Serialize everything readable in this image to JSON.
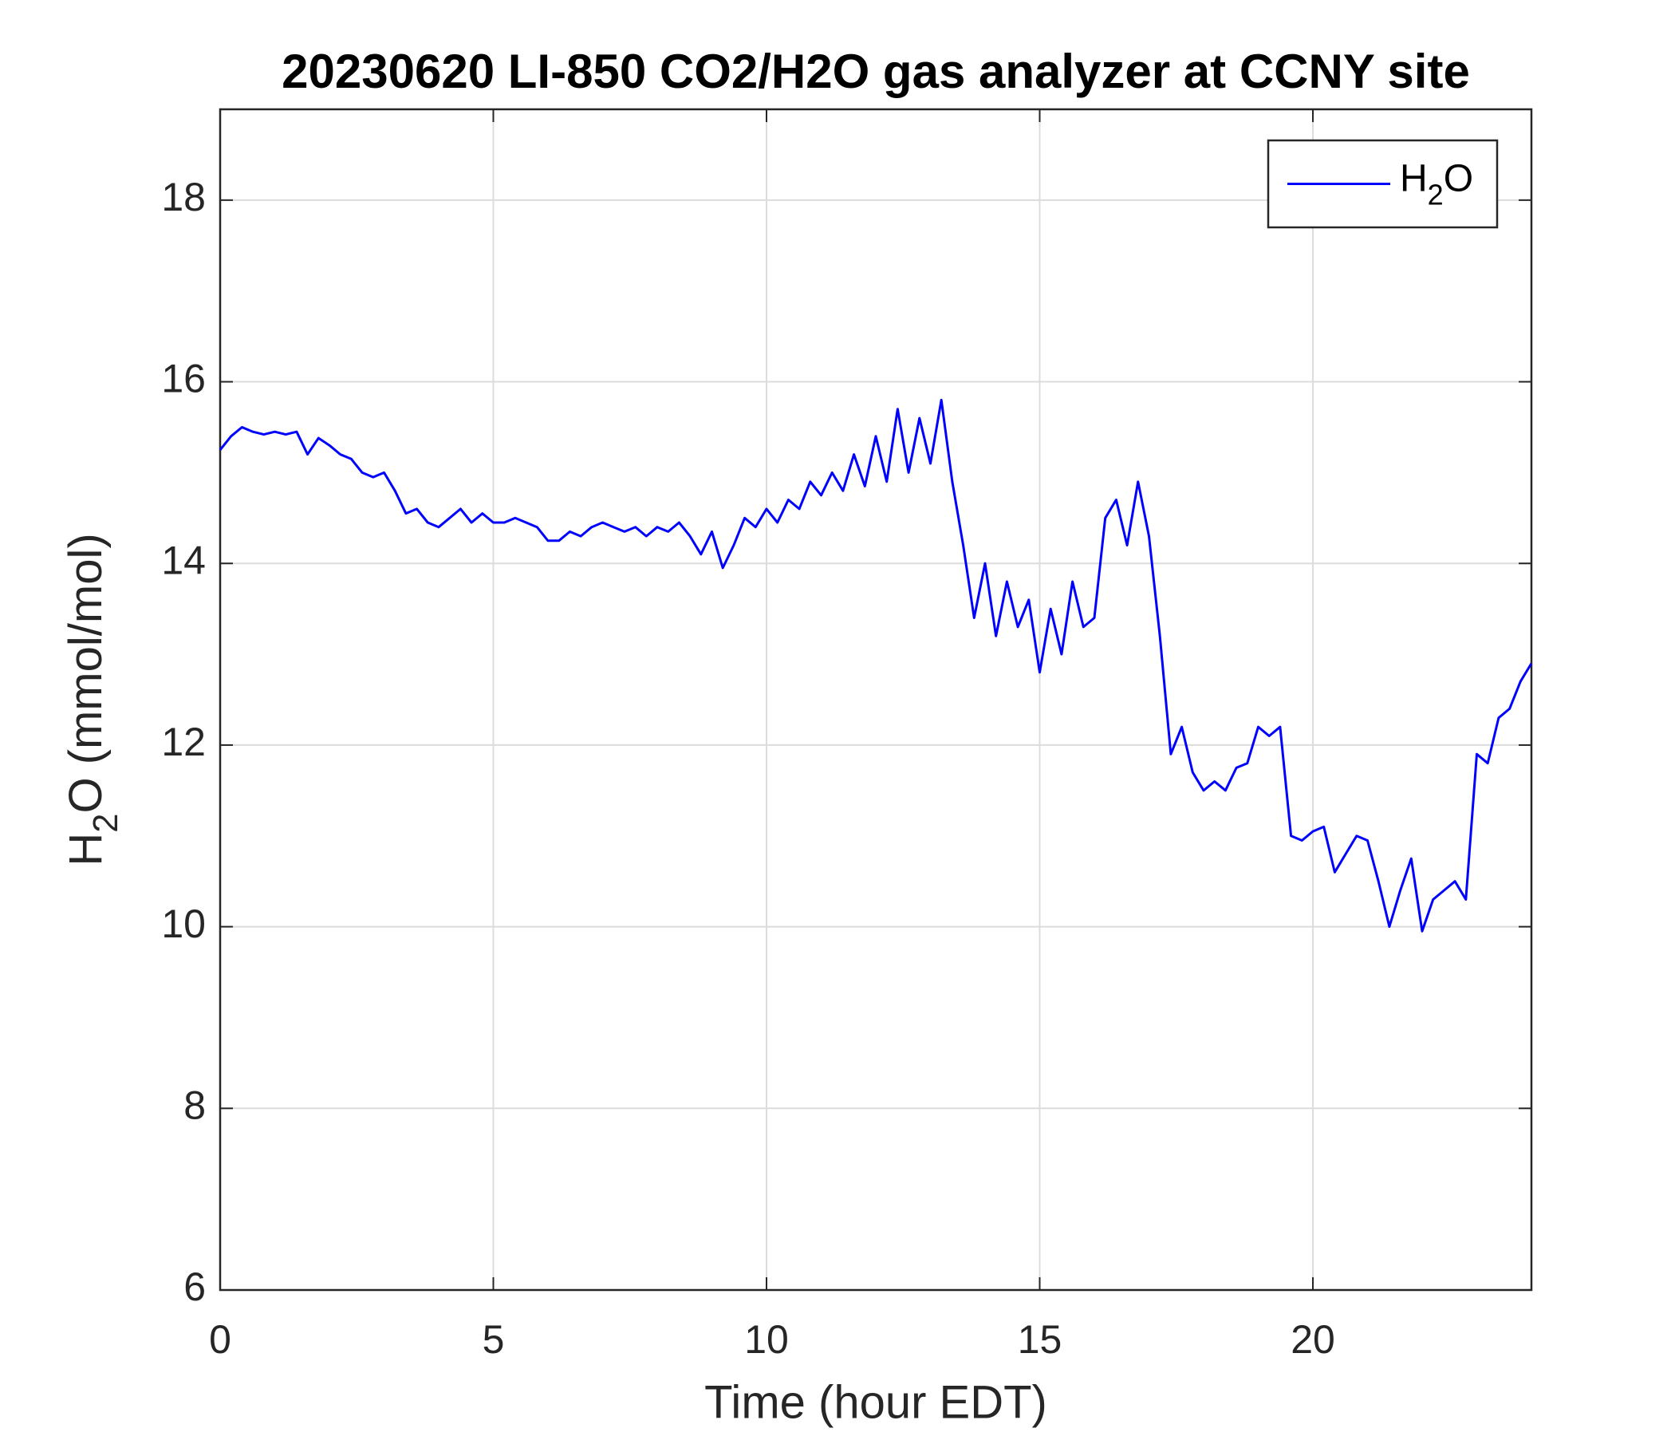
{
  "chart_data": {
    "type": "line",
    "title": "20230620 LI-850 CO2/H2O gas analyzer at CCNY site",
    "x_label": "Time (hour EDT)",
    "y_label": "H2O (mmol/mol)",
    "xlim": [
      0,
      24
    ],
    "xticks": [
      0,
      5,
      10,
      15,
      20
    ],
    "ylim": [
      6,
      19
    ],
    "yticks": [
      6,
      8,
      10,
      12,
      14,
      16,
      18
    ],
    "grid": true,
    "legend": "upper right",
    "x": [
      0,
      0.2,
      0.4,
      0.6,
      0.8,
      1,
      1.2,
      1.4,
      1.6,
      1.8,
      2,
      2.2,
      2.4,
      2.6,
      2.8,
      3,
      3.2,
      3.4,
      3.6,
      3.8,
      4,
      4.2,
      4.4,
      4.6,
      4.8,
      5,
      5.2,
      5.4,
      5.6,
      5.8,
      6,
      6.2,
      6.4,
      6.6,
      6.8,
      7,
      7.2,
      7.4,
      7.6,
      7.8,
      8,
      8.2,
      8.4,
      8.6,
      8.8,
      9,
      9.2,
      9.4,
      9.6,
      9.8,
      10,
      10.2,
      10.4,
      10.6,
      10.8,
      11,
      11.2,
      11.4,
      11.6,
      11.8,
      12,
      12.2,
      12.4,
      12.6,
      12.8,
      13,
      13.2,
      13.4,
      13.6,
      13.8,
      14,
      14.2,
      14.4,
      14.6,
      14.8,
      15,
      15.2,
      15.4,
      15.6,
      15.8,
      16,
      16.2,
      16.4,
      16.6,
      16.8,
      17,
      17.2,
      17.4,
      17.6,
      17.8,
      18,
      18.2,
      18.4,
      18.6,
      18.8,
      19,
      19.2,
      19.4,
      19.6,
      19.8,
      20,
      20.2,
      20.4,
      20.6,
      20.8,
      21,
      21.2,
      21.4,
      21.6,
      21.8,
      22,
      22.2,
      22.4,
      22.6,
      22.8,
      23,
      23.2,
      23.4,
      23.6,
      23.8,
      24
    ],
    "series": [
      {
        "name": "H2O",
        "color": "#0000ff",
        "values": [
          15.25,
          15.4,
          15.5,
          15.45,
          15.42,
          15.45,
          15.42,
          15.45,
          15.2,
          15.38,
          15.3,
          15.2,
          15.15,
          15.0,
          14.95,
          15.0,
          14.8,
          14.55,
          14.6,
          14.45,
          14.4,
          14.5,
          14.6,
          14.45,
          14.55,
          14.45,
          14.45,
          14.5,
          14.45,
          14.4,
          14.25,
          14.25,
          14.35,
          14.3,
          14.4,
          14.45,
          14.4,
          14.35,
          14.4,
          14.3,
          14.4,
          14.35,
          14.45,
          14.3,
          14.1,
          14.35,
          13.95,
          14.2,
          14.5,
          14.4,
          14.6,
          14.45,
          14.7,
          14.6,
          14.9,
          14.75,
          15.0,
          14.8,
          15.2,
          14.85,
          15.4,
          14.9,
          15.7,
          15.0,
          15.6,
          15.1,
          15.8,
          14.9,
          14.2,
          13.4,
          14.0,
          13.2,
          13.8,
          13.3,
          13.6,
          12.8,
          13.5,
          13.0,
          13.8,
          13.3,
          13.4,
          14.5,
          14.7,
          14.2,
          14.9,
          14.3,
          13.2,
          11.9,
          12.2,
          11.7,
          11.5,
          11.6,
          11.5,
          11.75,
          11.8,
          12.2,
          12.1,
          12.2,
          11.0,
          10.95,
          11.05,
          11.1,
          10.6,
          10.8,
          11.0,
          10.95,
          10.5,
          10.0,
          10.4,
          10.75,
          9.95,
          10.3,
          10.4,
          10.5,
          10.3,
          11.9,
          11.8,
          12.3,
          12.4,
          12.7,
          12.9
        ]
      }
    ]
  }
}
